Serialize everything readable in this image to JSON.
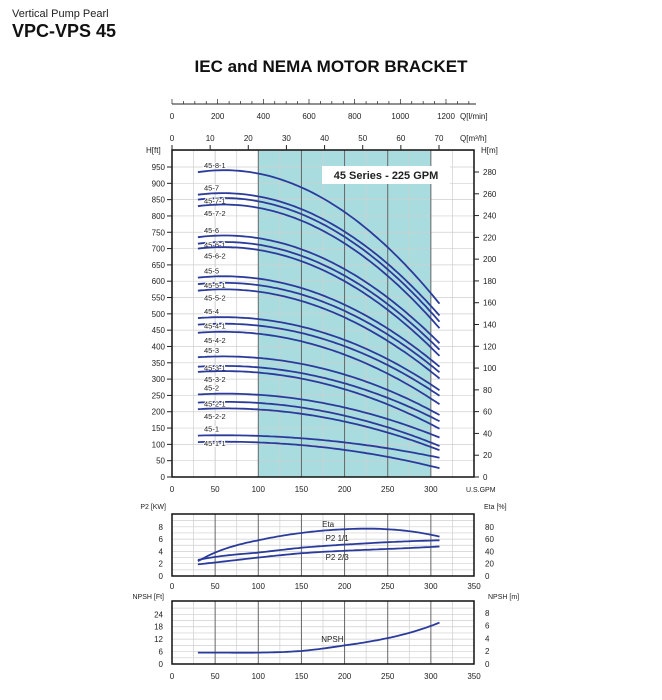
{
  "header": {
    "subtitle": "Vertical Pump Pearl",
    "model": "VPC-VPS 45",
    "title": "IEC and NEMA MOTOR BRACKET"
  },
  "colors": {
    "curve": "#2b3b9c",
    "band": "#a9dcdf",
    "grid": "#cfcfcf",
    "grid_major": "#666666"
  },
  "chart_data": [
    {
      "type": "line",
      "title": "45 Series - 225 GPM",
      "xlabel": "U.S.GPM",
      "ylabel": "H[ft]",
      "ylabel_right": "H[m]",
      "top_axis_lpm": {
        "label": "Q[l/min]",
        "ticks": [
          "0",
          "200",
          "400",
          "600",
          "800",
          "1000",
          "1200"
        ]
      },
      "top_axis_m3h": {
        "label": "Q[m³/h]",
        "ticks": [
          "0",
          "10",
          "20",
          "30",
          "40",
          "50",
          "60",
          "70"
        ]
      },
      "xlim": [
        0,
        350
      ],
      "ylim": [
        0,
        1000
      ],
      "x_ticks": [
        "0",
        "50",
        "100",
        "150",
        "200",
        "250",
        "300"
      ],
      "y_ticks": [
        "0",
        "50",
        "100",
        "150",
        "200",
        "250",
        "300",
        "350",
        "400",
        "450",
        "500",
        "550",
        "600",
        "650",
        "700",
        "750",
        "800",
        "850",
        "900",
        "950"
      ],
      "y_right_ticks": [
        "0",
        "20",
        "40",
        "60",
        "80",
        "100",
        "120",
        "140",
        "160",
        "180",
        "200",
        "220",
        "240",
        "260",
        "280"
      ],
      "highlight_range": [
        100,
        300
      ],
      "grid": true,
      "x": [
        30,
        100,
        200,
        310
      ],
      "series": [
        {
          "name": "45-8-1",
          "values": [
            934,
            930,
            812,
            531
          ]
        },
        {
          "name": "45-7",
          "values": [
            865,
            860,
            752,
            495
          ]
        },
        {
          "name": "45-7-1",
          "values": [
            850,
            845,
            736,
            476
          ]
        },
        {
          "name": "45-7-2",
          "values": [
            830,
            825,
            716,
            456
          ]
        },
        {
          "name": "45-6",
          "values": [
            735,
            732,
            637,
            410
          ]
        },
        {
          "name": "45-6-1",
          "values": [
            715,
            712,
            617,
            390
          ]
        },
        {
          "name": "45-6-2",
          "values": [
            700,
            696,
            600,
            371
          ]
        },
        {
          "name": "45-5",
          "values": [
            611,
            608,
            528,
            338
          ]
        },
        {
          "name": "45-5-1",
          "values": [
            591,
            588,
            509,
            321
          ]
        },
        {
          "name": "45-5-2",
          "values": [
            571,
            568,
            489,
            302
          ]
        },
        {
          "name": "45-4",
          "values": [
            487,
            484,
            420,
            266
          ]
        },
        {
          "name": "45-4-1",
          "values": [
            467,
            464,
            401,
            249
          ]
        },
        {
          "name": "45-4-2",
          "values": [
            442,
            439,
            375,
            223
          ]
        },
        {
          "name": "45-3",
          "values": [
            367,
            365,
            314,
            190
          ]
        },
        {
          "name": "45-3-1",
          "values": [
            338,
            336,
            287,
            171
          ]
        },
        {
          "name": "45-3-2",
          "values": [
            322,
            320,
            269,
            148
          ]
        },
        {
          "name": "45-2",
          "values": [
            253,
            252,
            213,
            121
          ]
        },
        {
          "name": "45-2-1",
          "values": [
            228,
            227,
            188,
            95
          ]
        },
        {
          "name": "45-2-2",
          "values": [
            208,
            207,
            170,
            82
          ]
        },
        {
          "name": "45-1",
          "values": [
            127,
            126,
            106,
            59
          ]
        },
        {
          "name": "45-1-1",
          "values": [
            107,
            106,
            83,
            27
          ]
        }
      ]
    },
    {
      "type": "line",
      "ylabel": "P2 [KW]",
      "ylabel_right": "Eta [%]",
      "xlim": [
        0,
        350
      ],
      "ylim": [
        0,
        10
      ],
      "ylim_right": [
        0,
        100
      ],
      "x_ticks": [
        "0",
        "50",
        "100",
        "150",
        "200",
        "250",
        "300",
        "350"
      ],
      "y_ticks": [
        "0",
        "2",
        "4",
        "6",
        "8"
      ],
      "y_right_ticks": [
        "0",
        "20",
        "40",
        "60",
        "80"
      ],
      "grid": true,
      "x": [
        30,
        50,
        100,
        150,
        200,
        250,
        310
      ],
      "series": [
        {
          "name": "Eta",
          "axis": "right",
          "values": [
            24,
            38,
            58,
            70,
            76,
            76,
            64
          ]
        },
        {
          "name": "P2 1/1",
          "axis": "left",
          "values": [
            2.6,
            3.1,
            3.8,
            4.6,
            5.1,
            5.5,
            5.8
          ]
        },
        {
          "name": "P2 2/3",
          "axis": "left",
          "values": [
            1.9,
            2.2,
            3.0,
            3.7,
            4.1,
            4.4,
            4.8
          ]
        }
      ]
    },
    {
      "type": "line",
      "ylabel": "NPSH [Ft]",
      "ylabel_right": "NPSH [m]",
      "xlim": [
        0,
        350
      ],
      "ylim": [
        0,
        30
      ],
      "x_ticks": [
        "0",
        "50",
        "100",
        "150",
        "200",
        "250",
        "300",
        "350"
      ],
      "y_ticks": [
        "0",
        "6",
        "12",
        "18",
        "24"
      ],
      "y_right_ticks": [
        "0",
        "2",
        "4",
        "6",
        "8"
      ],
      "grid": true,
      "x": [
        30,
        100,
        150,
        200,
        250,
        310
      ],
      "series": [
        {
          "name": "NPSH",
          "values": [
            5.5,
            5.5,
            6.3,
            9,
            12.5,
            20
          ]
        }
      ]
    }
  ]
}
